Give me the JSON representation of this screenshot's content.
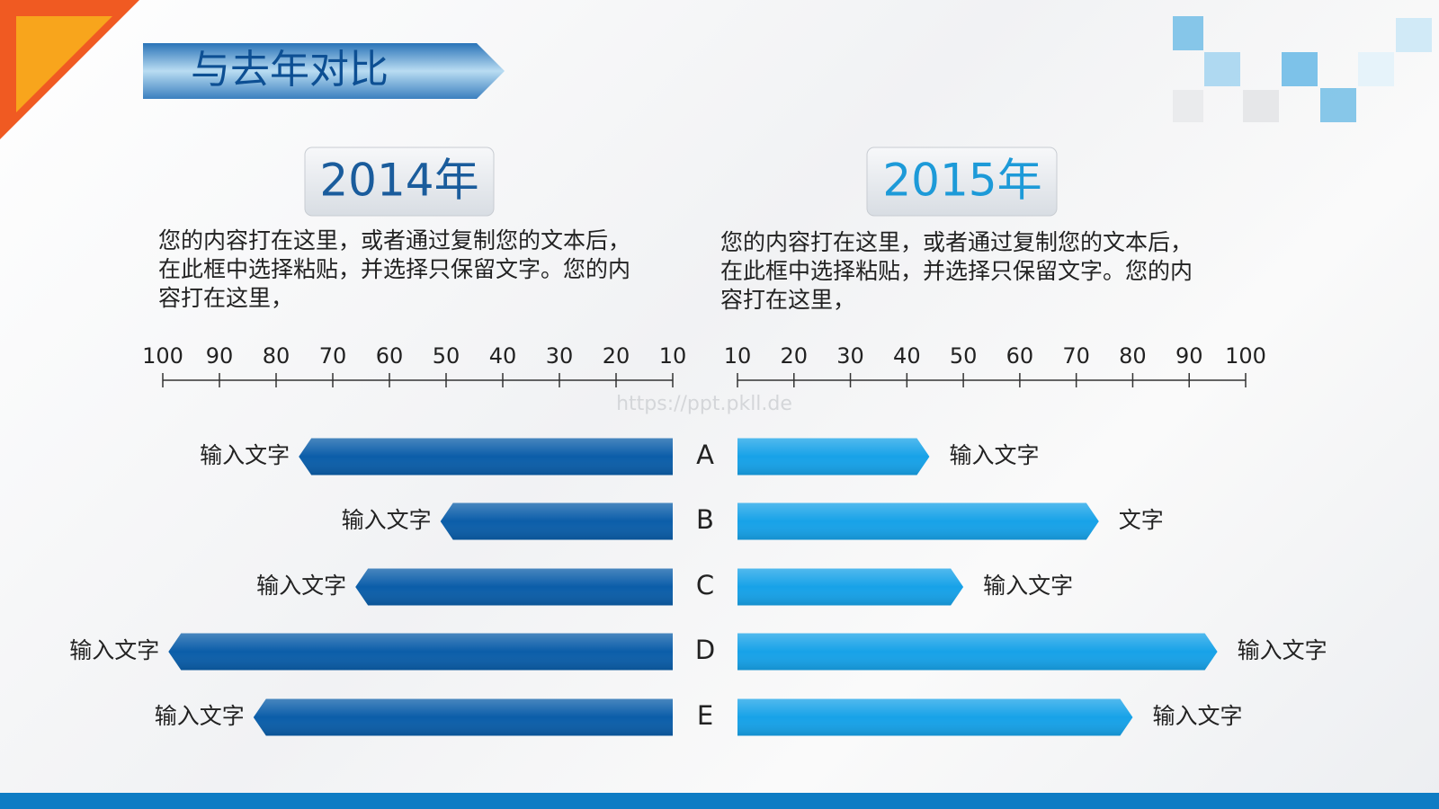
{
  "chart_data": {
    "type": "butterfly",
    "title": "与去年对比",
    "watermark": "https://ppt.pkll.de",
    "categories": [
      "A",
      "B",
      "C",
      "D",
      "E"
    ],
    "xlim": [
      10,
      100
    ],
    "xticks": [
      10,
      20,
      30,
      40,
      50,
      60,
      70,
      80,
      90,
      100
    ],
    "series": [
      {
        "name": "2014年",
        "color": "#0b5ea9",
        "description": "您的内容打在这里，或者通过复制您的文本后，在此框中选择粘贴，并选择只保留文字。您的内容打在这里，",
        "values": [
          76,
          51,
          66,
          99,
          84
        ],
        "labels": [
          "输入文字",
          "输入文字",
          "输入文字",
          "输入文字",
          "输入文字"
        ]
      },
      {
        "name": "2015年",
        "color": "#17a2e8",
        "description": "您的内容打在这里，或者通过复制您的文本后，在此框中选择粘贴，并选择只保留文字。您的内容打在这里，",
        "values": [
          44,
          74,
          50,
          95,
          80
        ],
        "labels": [
          "输入文字",
          "文字",
          "输入文字",
          "输入文字",
          "输入文字"
        ]
      }
    ]
  }
}
